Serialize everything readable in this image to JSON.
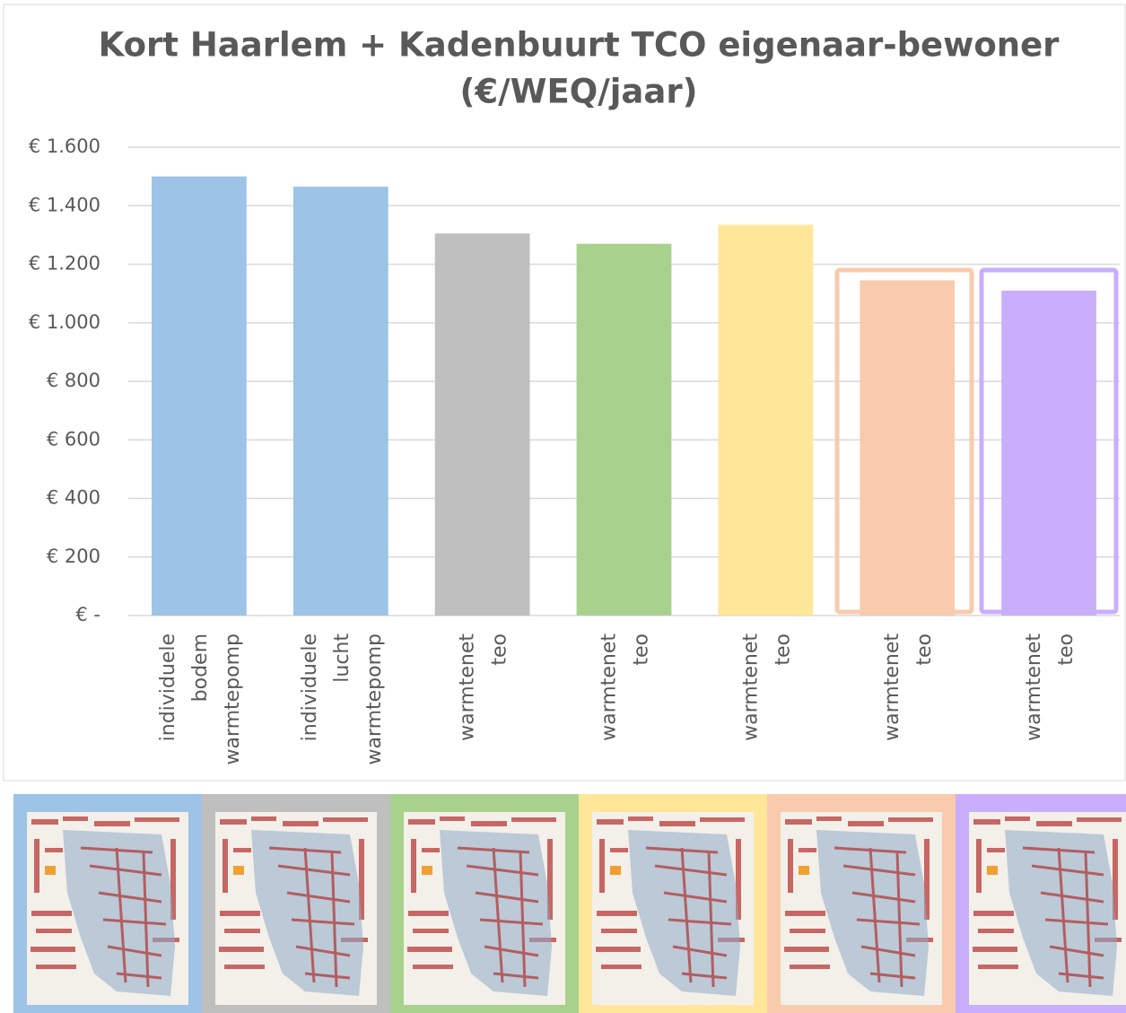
{
  "chart_data": {
    "type": "bar",
    "title": [
      "Kort Haarlem + Kadenbuurt TCO eigenaar-bewoner",
      "(€/WEQ/jaar)"
    ],
    "categories": [
      "individuele bodem warmtepomp",
      "individuele lucht warmtepomp",
      "warmtenet teo",
      "warmtenet teo",
      "warmtenet teo",
      "warmtenet teo",
      "warmtenet teo"
    ],
    "values": [
      1500,
      1465,
      1305,
      1270,
      1335,
      1145,
      1110
    ],
    "colors": [
      "#9dc3e6",
      "#9dc3e6",
      "#bfbfbf",
      "#a9d18e",
      "#ffe699",
      "#f8cbad",
      "#c9aefc"
    ],
    "ylim": [
      0,
      1600
    ],
    "yticks": [
      {
        "value": 0,
        "label": "€ -"
      },
      {
        "value": 200,
        "label": "€ 200"
      },
      {
        "value": 400,
        "label": "€ 400"
      },
      {
        "value": 600,
        "label": "€ 600"
      },
      {
        "value": 800,
        "label": "€ 800"
      },
      {
        "value": 1000,
        "label": "€ 1.000"
      },
      {
        "value": 1200,
        "label": "€ 1.200"
      },
      {
        "value": 1400,
        "label": "€ 1.400"
      },
      {
        "value": 1600,
        "label": "€ 1.600"
      }
    ],
    "grid": true
  }
}
